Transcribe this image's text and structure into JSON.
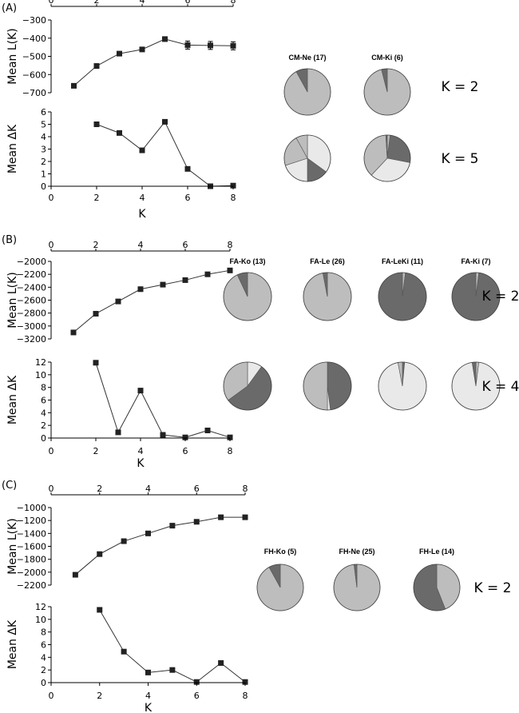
{
  "colors": {
    "dark": "#6a6a6a",
    "mid": "#bdbdbd",
    "light": "#e9e9e9",
    "line": "#000000",
    "series": "#333333"
  },
  "chart_data": [
    {
      "panel": "(A)",
      "type": "line",
      "xlabel": "K",
      "x_ticks": [
        0,
        2,
        4,
        6,
        8
      ],
      "top": {
        "ylabel": "Mean L(K)",
        "ylim": [
          -700,
          -300
        ],
        "y_ticks": [
          -300,
          -400,
          -500,
          -600,
          -700
        ],
        "x": [
          1,
          2,
          3,
          4,
          5,
          6,
          7,
          8
        ],
        "values": [
          -662,
          -553,
          -485,
          -462,
          -405,
          -438,
          -440,
          -442
        ],
        "errors": [
          0,
          0,
          0,
          0,
          12,
          22,
          22,
          22
        ]
      },
      "bottom": {
        "ylabel": "Mean ΔK",
        "ylim": [
          0,
          6
        ],
        "y_ticks": [
          0,
          1,
          2,
          3,
          4,
          5,
          6
        ],
        "x": [
          2,
          3,
          4,
          5,
          6,
          7,
          8
        ],
        "values": [
          5.0,
          4.3,
          2.9,
          5.2,
          1.4,
          0.0,
          0.05
        ]
      },
      "pies": {
        "populations": [
          "CM-Ne (17)",
          "CM-Ki (6)"
        ],
        "rows": [
          {
            "k_label": "K = 2",
            "slices": [
              [
                {
                  "value": 0.92,
                  "color": "mid"
                },
                {
                  "value": 0.08,
                  "color": "dark"
                }
              ],
              [
                {
                  "value": 0.96,
                  "color": "mid"
                },
                {
                  "value": 0.04,
                  "color": "dark"
                }
              ]
            ]
          },
          {
            "k_label": "K = 5",
            "slices": [
              [
                {
                  "value": 0.35,
                  "color": "light"
                },
                {
                  "value": 0.15,
                  "color": "dark"
                },
                {
                  "value": 0.2,
                  "color": "light"
                },
                {
                  "value": 0.22,
                  "color": "mid"
                },
                {
                  "value": 0.08,
                  "color": "mid"
                }
              ],
              [
                {
                  "value": 0.02,
                  "color": "mid"
                },
                {
                  "value": 0.26,
                  "color": "dark"
                },
                {
                  "value": 0.34,
                  "color": "light"
                },
                {
                  "value": 0.37,
                  "color": "mid"
                },
                {
                  "value": 0.01,
                  "color": "dark"
                }
              ]
            ]
          }
        ]
      }
    },
    {
      "panel": "(B)",
      "type": "line",
      "xlabel": "K",
      "x_ticks": [
        0,
        2,
        4,
        6,
        8
      ],
      "top": {
        "ylabel": "Mean L(K)",
        "ylim": [
          -3200,
          -2000
        ],
        "y_ticks": [
          -2000,
          -2200,
          -2400,
          -2600,
          -2800,
          -3000,
          -3200
        ],
        "x": [
          1,
          2,
          3,
          4,
          5,
          6,
          7,
          8
        ],
        "values": [
          -3100,
          -2810,
          -2620,
          -2430,
          -2360,
          -2290,
          -2200,
          -2140
        ],
        "errors": [
          0,
          0,
          0,
          0,
          0,
          0,
          0,
          0
        ]
      },
      "bottom": {
        "ylabel": "Mean ΔK",
        "ylim": [
          0,
          12
        ],
        "y_ticks": [
          0,
          2,
          4,
          6,
          8,
          10,
          12
        ],
        "x": [
          2,
          3,
          4,
          5,
          6,
          7,
          8
        ],
        "values": [
          11.9,
          0.9,
          7.5,
          0.5,
          0.1,
          1.2,
          0.1
        ]
      },
      "pies": {
        "populations": [
          "FA-Ko (13)",
          "FA-Le (26)",
          "FA-LeKi (11)",
          "FA-Ki (7)"
        ],
        "rows": [
          {
            "k_label": "K = 2",
            "slices": [
              [
                {
                  "value": 0.93,
                  "color": "mid"
                },
                {
                  "value": 0.07,
                  "color": "dark"
                }
              ],
              [
                {
                  "value": 0.97,
                  "color": "mid"
                },
                {
                  "value": 0.03,
                  "color": "dark"
                }
              ],
              [
                {
                  "value": 0.02,
                  "color": "mid"
                },
                {
                  "value": 0.98,
                  "color": "dark"
                }
              ],
              [
                {
                  "value": 0.02,
                  "color": "mid"
                },
                {
                  "value": 0.98,
                  "color": "dark"
                }
              ]
            ]
          },
          {
            "k_label": "K = 4",
            "slices": [
              [
                {
                  "value": 0.1,
                  "color": "light"
                },
                {
                  "value": 0.55,
                  "color": "dark"
                },
                {
                  "value": 0.35,
                  "color": "mid"
                }
              ],
              [
                {
                  "value": 0.48,
                  "color": "dark"
                },
                {
                  "value": 0.02,
                  "color": "light"
                },
                {
                  "value": 0.5,
                  "color": "mid"
                }
              ],
              [
                {
                  "value": 0.015,
                  "color": "dark"
                },
                {
                  "value": 0.955,
                  "color": "light"
                },
                {
                  "value": 0.03,
                  "color": "mid"
                }
              ],
              [
                {
                  "value": 0.02,
                  "color": "mid"
                },
                {
                  "value": 0.955,
                  "color": "light"
                },
                {
                  "value": 0.025,
                  "color": "dark"
                }
              ]
            ]
          }
        ]
      }
    },
    {
      "panel": "(C)",
      "type": "line",
      "xlabel": "K",
      "x_ticks": [
        0,
        2,
        4,
        6,
        8
      ],
      "top": {
        "ylabel": "Mean L(K)",
        "ylim": [
          -2200,
          -1000
        ],
        "y_ticks": [
          -1000,
          -1200,
          -1400,
          -1600,
          -1800,
          -2000,
          -2200
        ],
        "x": [
          1,
          2,
          3,
          4,
          5,
          6,
          7,
          8
        ],
        "values": [
          -2040,
          -1720,
          -1520,
          -1400,
          -1280,
          -1220,
          -1150,
          -1150
        ],
        "errors": [
          0,
          0,
          0,
          0,
          0,
          0,
          0,
          0
        ]
      },
      "bottom": {
        "ylabel": "Mean ΔK",
        "ylim": [
          0,
          12
        ],
        "y_ticks": [
          0,
          2,
          4,
          6,
          8,
          10,
          12
        ],
        "x": [
          2,
          3,
          4,
          5,
          6,
          7,
          8
        ],
        "values": [
          11.5,
          4.9,
          1.6,
          2.0,
          0.1,
          3.1,
          0.1
        ]
      },
      "pies": {
        "populations": [
          "FH-Ko (5)",
          "FH-Ne (25)",
          "FH-Le (14)"
        ],
        "rows": [
          {
            "k_label": "K = 2",
            "slices": [
              [
                {
                  "value": 0.92,
                  "color": "mid"
                },
                {
                  "value": 0.08,
                  "color": "dark"
                }
              ],
              [
                {
                  "value": 0.98,
                  "color": "mid"
                },
                {
                  "value": 0.02,
                  "color": "dark"
                }
              ],
              [
                {
                  "value": 0.44,
                  "color": "mid"
                },
                {
                  "value": 0.56,
                  "color": "dark"
                }
              ]
            ]
          }
        ]
      }
    }
  ]
}
